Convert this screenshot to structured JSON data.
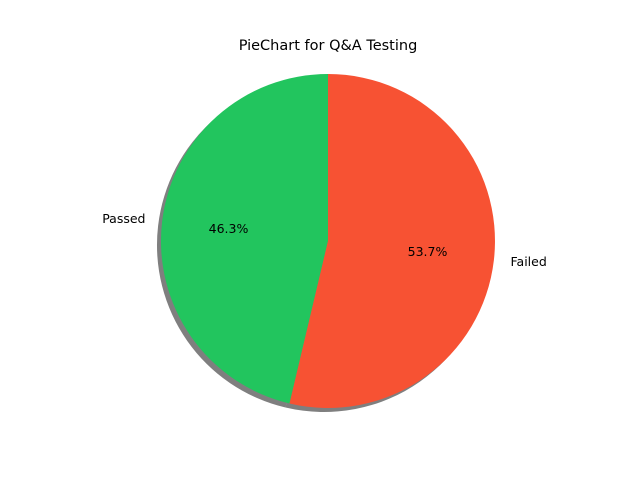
{
  "chart_data": {
    "type": "pie",
    "title": "PieChart for Q&A Testing",
    "categories": [
      "Passed",
      "Failed"
    ],
    "values": [
      46.3,
      53.7
    ],
    "percent_labels": [
      "46.3%",
      "53.7%"
    ],
    "colors": [
      "#22c55e",
      "#f75233"
    ],
    "start_angle": 90,
    "direction": "counterclockwise",
    "shadow": true,
    "legend": "none"
  }
}
